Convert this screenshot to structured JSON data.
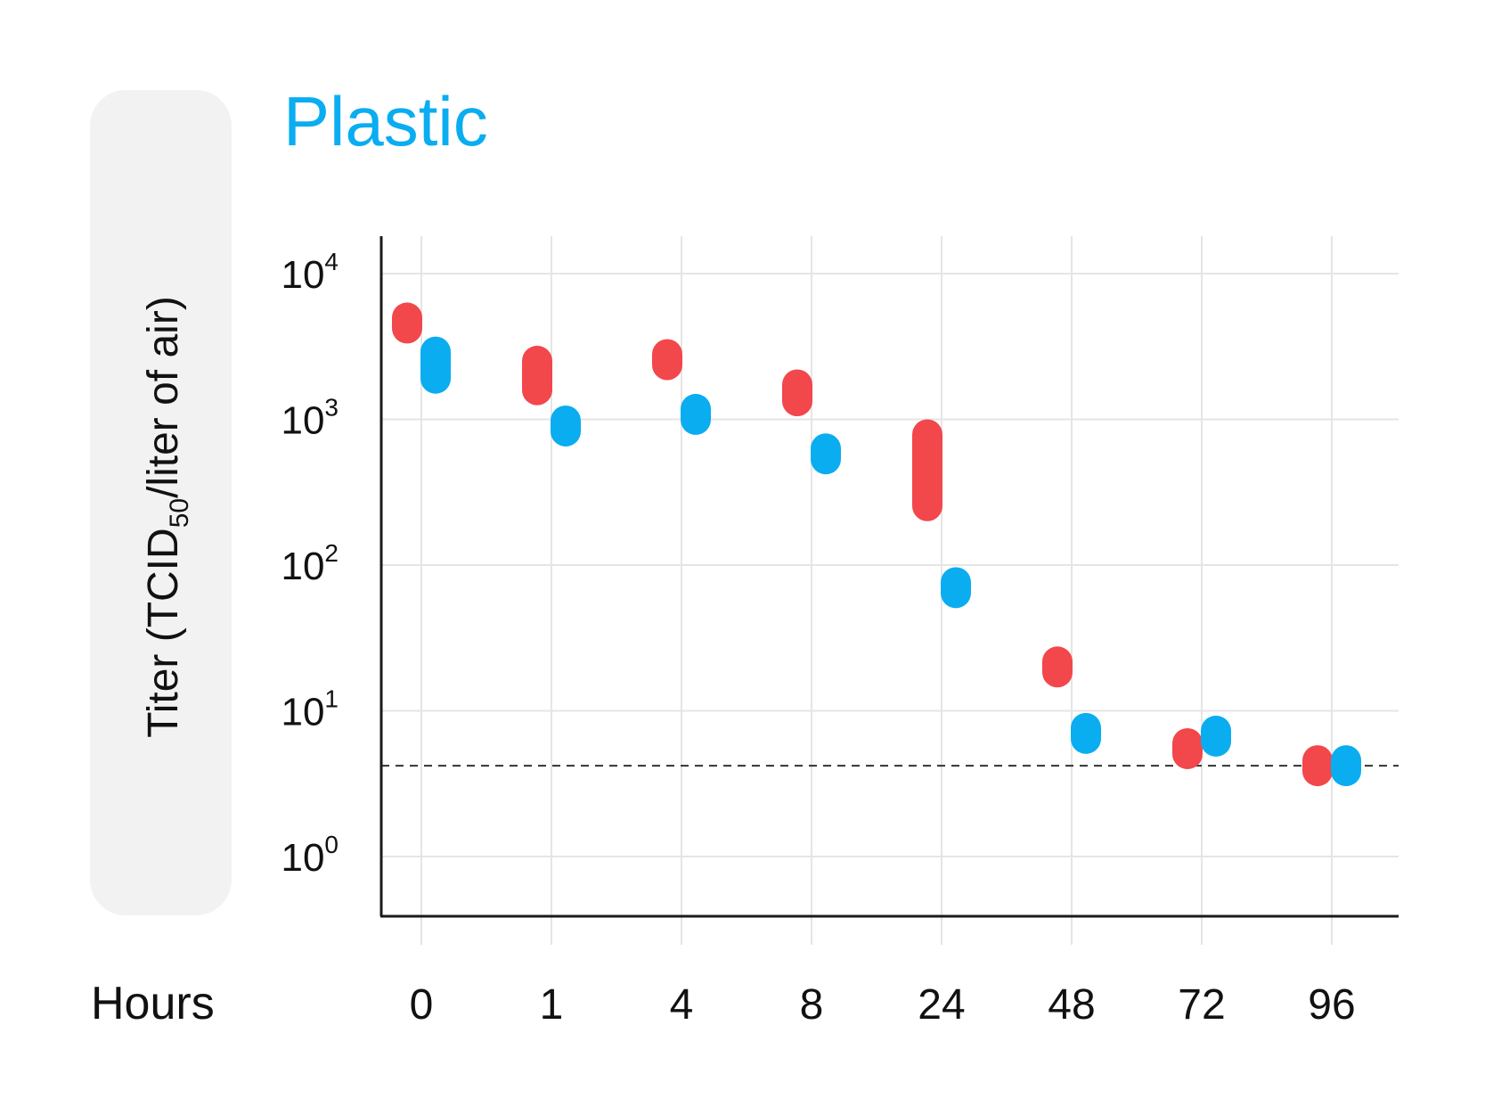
{
  "chart_data": {
    "type": "range",
    "title": "Plastic",
    "ylabel": {
      "prefix": "Titer (TCID",
      "subscript": "50",
      "suffix": "/liter of air)"
    },
    "xlabel": "Hours",
    "y_scale": "log10",
    "ylim": [
      1,
      10000
    ],
    "y_ticks": [
      {
        "base": "10",
        "exp": "0",
        "value": 1
      },
      {
        "base": "10",
        "exp": "1",
        "value": 10
      },
      {
        "base": "10",
        "exp": "2",
        "value": 100
      },
      {
        "base": "10",
        "exp": "3",
        "value": 1000
      },
      {
        "base": "10",
        "exp": "4",
        "value": 10000
      }
    ],
    "categories": [
      "0",
      "1",
      "4",
      "8",
      "24",
      "48",
      "72",
      "96"
    ],
    "series": [
      {
        "color": "#f2474b",
        "ranges": [
          [
            3500,
            6000
          ],
          [
            1250,
            3200
          ],
          [
            2000,
            3300
          ],
          [
            1050,
            2200
          ],
          [
            200,
            1000
          ],
          [
            20,
            20
          ],
          [
            5.5,
            5.5
          ],
          [
            4.2,
            4.2
          ]
        ]
      },
      {
        "color": "#0aadf0",
        "ranges": [
          [
            1500,
            3700
          ],
          [
            900,
            900
          ],
          [
            900,
            1300
          ],
          [
            420,
            800
          ],
          [
            70,
            70
          ],
          [
            7,
            7
          ],
          [
            6.7,
            6.7
          ],
          [
            4.2,
            4.2
          ]
        ]
      }
    ],
    "detection_limit": 4.2,
    "grid": true
  },
  "colors": {
    "title": "#0aadf0",
    "label_panel": "#f2f2f2",
    "grid": "#e5e5e5",
    "axis": "#1a1a1a",
    "text": "#111111"
  }
}
